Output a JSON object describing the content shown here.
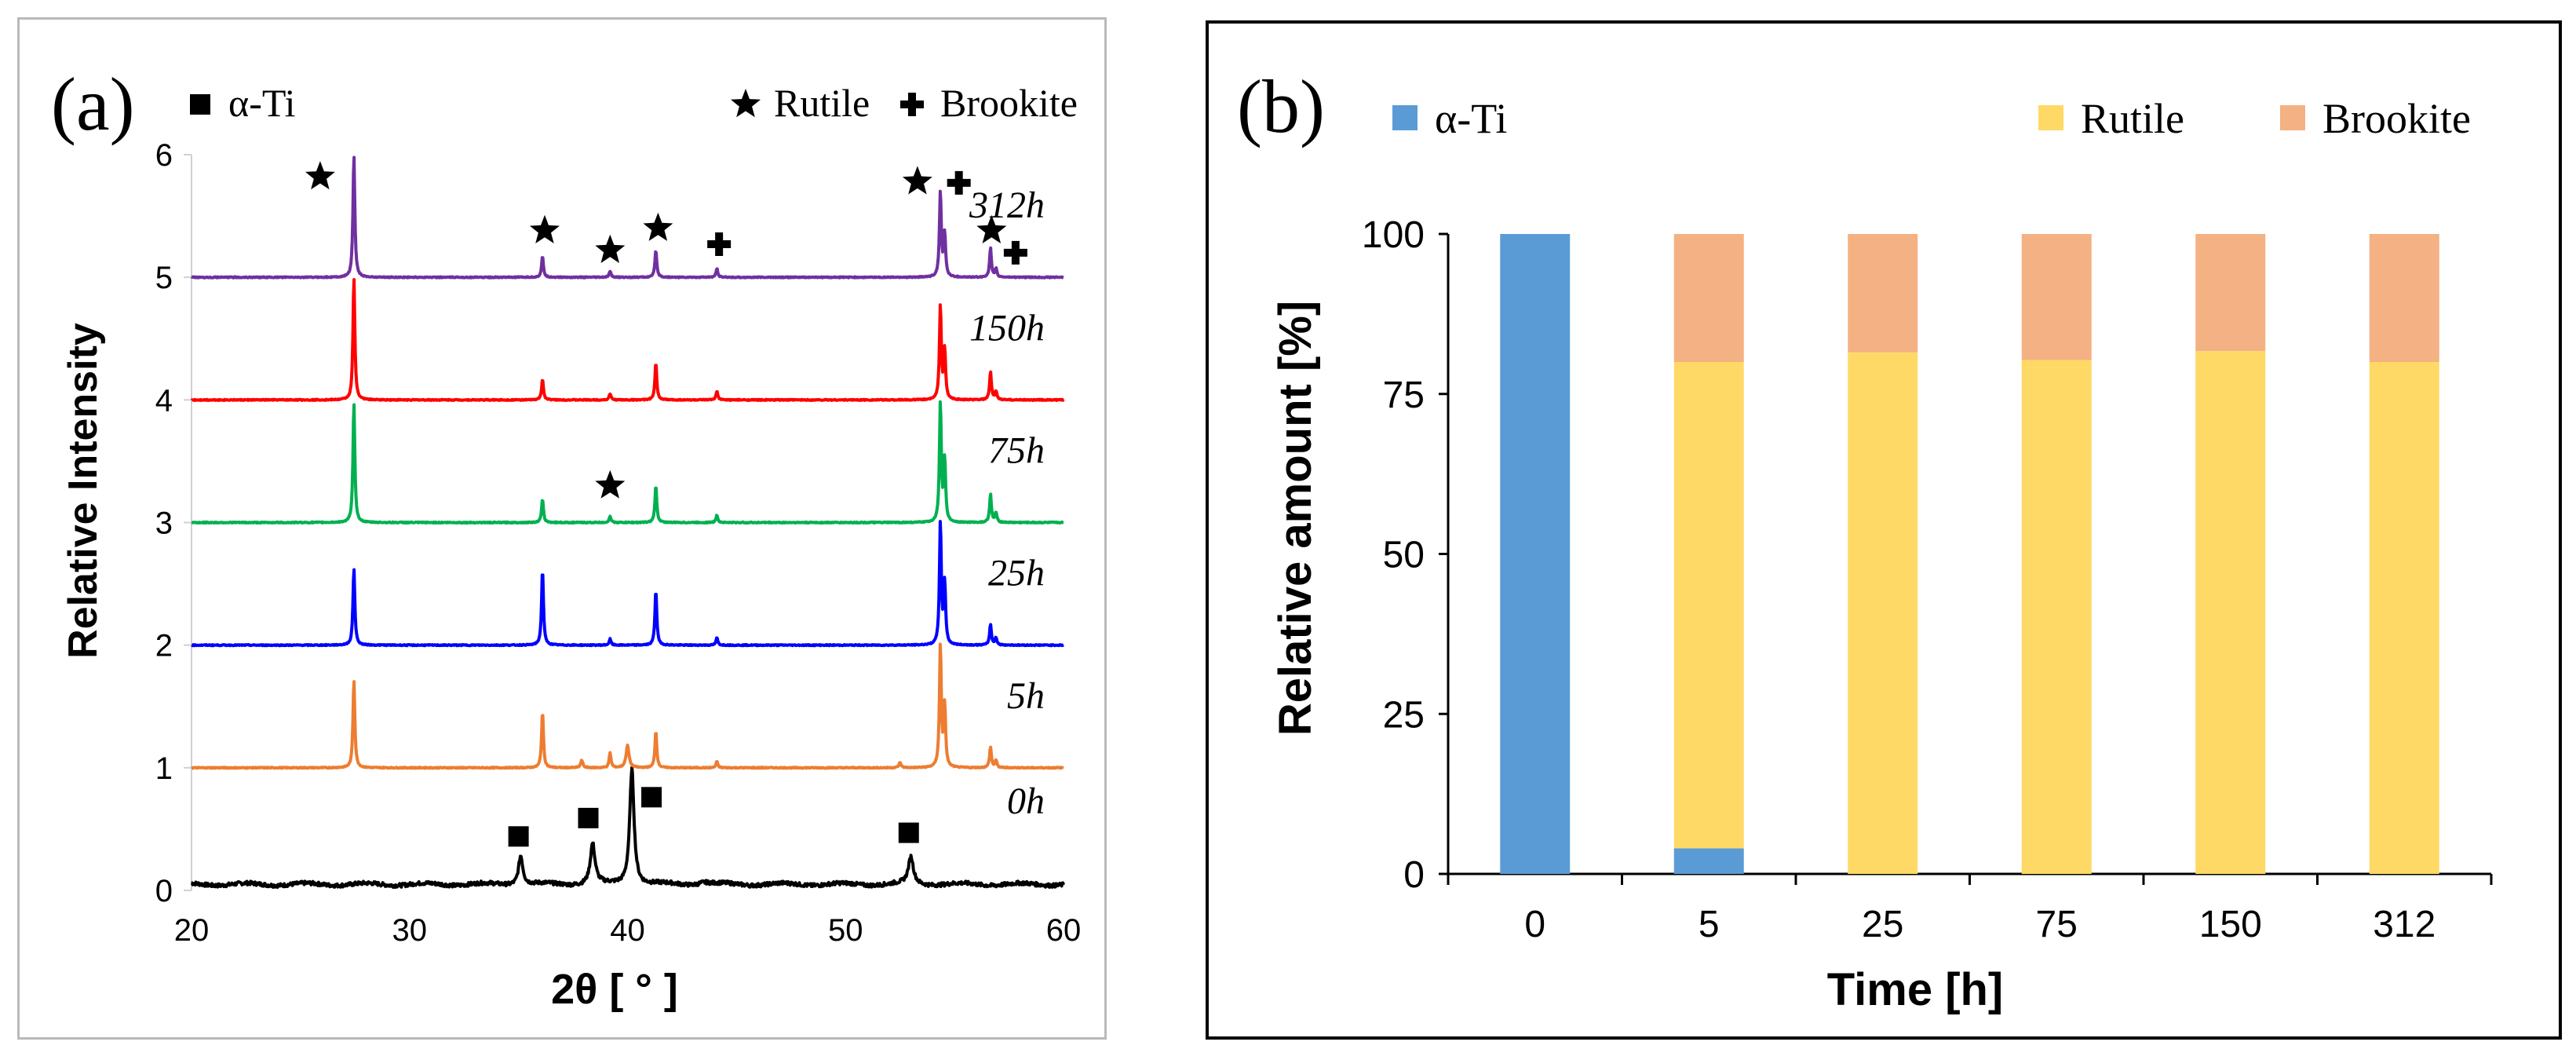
{
  "chart_data": [
    {
      "type": "line",
      "panel_label": "(a)",
      "xlabel": "2θ [ ° ]",
      "ylabel": "Relative Intensity",
      "xlim": [
        20,
        60
      ],
      "ylim": [
        0,
        6
      ],
      "xticks": [
        20,
        30,
        40,
        50,
        60
      ],
      "yticks": [
        0,
        1,
        2,
        3,
        4,
        5,
        6
      ],
      "legend": [
        {
          "marker": "square",
          "label": "α-Ti"
        },
        {
          "marker": "star",
          "label": "Rutile"
        },
        {
          "marker": "cross",
          "label": "Brookite"
        }
      ],
      "series": [
        {
          "name": "0h",
          "offset": 0,
          "color": "#000000",
          "noise": 0.015,
          "peaks": [
            [
              35.1,
              0.24,
              0.12
            ],
            [
              38.4,
              0.33,
              0.13
            ],
            [
              40.2,
              0.95,
              0.12
            ],
            [
              53.0,
              0.22,
              0.14
            ],
            [
              43.5,
              0.02,
              0.3
            ]
          ]
        },
        {
          "name": "5h",
          "offset": 1,
          "color": "#ed7d31",
          "noise": 0.004,
          "peaks": [
            [
              27.45,
              0.72,
              0.05
            ],
            [
              36.1,
              0.46,
              0.05
            ],
            [
              37.9,
              0.06,
              0.06
            ],
            [
              39.2,
              0.12,
              0.05
            ],
            [
              40.0,
              0.18,
              0.08
            ],
            [
              41.3,
              0.3,
              0.05
            ],
            [
              44.1,
              0.05,
              0.05
            ],
            [
              52.5,
              0.04,
              0.06
            ],
            [
              54.35,
              1.0,
              0.05
            ],
            [
              54.55,
              0.5,
              0.05
            ],
            [
              56.65,
              0.17,
              0.05
            ],
            [
              56.9,
              0.06,
              0.05
            ]
          ]
        },
        {
          "name": "25h",
          "offset": 2,
          "color": "#0000ff",
          "noise": 0.004,
          "peaks": [
            [
              27.45,
              0.63,
              0.05
            ],
            [
              36.1,
              0.62,
              0.05
            ],
            [
              39.2,
              0.05,
              0.05
            ],
            [
              41.3,
              0.45,
              0.05
            ],
            [
              44.1,
              0.06,
              0.05
            ],
            [
              54.35,
              1.0,
              0.05
            ],
            [
              54.55,
              0.5,
              0.05
            ],
            [
              56.65,
              0.17,
              0.05
            ],
            [
              56.9,
              0.06,
              0.05
            ]
          ]
        },
        {
          "name": "75h",
          "offset": 3,
          "color": "#00b050",
          "noise": 0.004,
          "peaks": [
            [
              27.45,
              0.98,
              0.05
            ],
            [
              36.1,
              0.19,
              0.05
            ],
            [
              39.2,
              0.05,
              0.05
            ],
            [
              41.3,
              0.3,
              0.05
            ],
            [
              44.1,
              0.06,
              0.05
            ],
            [
              54.35,
              0.98,
              0.05
            ],
            [
              54.55,
              0.5,
              0.05
            ],
            [
              56.65,
              0.23,
              0.05
            ],
            [
              56.9,
              0.08,
              0.05
            ]
          ]
        },
        {
          "name": "150h",
          "offset": 4,
          "color": "#ff0000",
          "noise": 0.004,
          "peaks": [
            [
              27.45,
              1.0,
              0.05
            ],
            [
              36.1,
              0.17,
              0.05
            ],
            [
              39.2,
              0.05,
              0.05
            ],
            [
              41.3,
              0.3,
              0.05
            ],
            [
              44.1,
              0.07,
              0.05
            ],
            [
              54.35,
              0.77,
              0.05
            ],
            [
              54.55,
              0.4,
              0.05
            ],
            [
              56.65,
              0.23,
              0.05
            ],
            [
              56.9,
              0.07,
              0.05
            ]
          ]
        },
        {
          "name": "312h",
          "offset": 5,
          "color": "#7030a0",
          "noise": 0.004,
          "peaks": [
            [
              27.45,
              1.0,
              0.05
            ],
            [
              36.1,
              0.17,
              0.05
            ],
            [
              39.2,
              0.05,
              0.05
            ],
            [
              41.3,
              0.22,
              0.05
            ],
            [
              44.1,
              0.07,
              0.05
            ],
            [
              54.35,
              0.7,
              0.05
            ],
            [
              54.55,
              0.35,
              0.05
            ],
            [
              56.65,
              0.24,
              0.05
            ],
            [
              56.9,
              0.07,
              0.05
            ]
          ]
        }
      ],
      "phase_markers": [
        {
          "phase": "α-Ti",
          "marker": "square",
          "x": 35.0,
          "y": 0.44
        },
        {
          "phase": "α-Ti",
          "marker": "square",
          "x": 38.2,
          "y": 0.59
        },
        {
          "phase": "α-Ti",
          "marker": "square",
          "x": 41.1,
          "y": 0.76
        },
        {
          "phase": "α-Ti",
          "marker": "square",
          "x": 52.9,
          "y": 0.47
        },
        {
          "phase": "Rutile",
          "marker": "star",
          "x": 25.9,
          "y": 5.82
        },
        {
          "phase": "Rutile",
          "marker": "star",
          "x": 36.2,
          "y": 5.38
        },
        {
          "phase": "Rutile",
          "marker": "star",
          "x": 39.2,
          "y": 5.22
        },
        {
          "phase": "Rutile",
          "marker": "star",
          "x": 41.4,
          "y": 5.4
        },
        {
          "phase": "Rutile",
          "marker": "star",
          "x": 53.3,
          "y": 5.78
        },
        {
          "phase": "Rutile",
          "marker": "star",
          "x": 56.7,
          "y": 5.38
        },
        {
          "phase": "Rutile",
          "marker": "star",
          "x": 39.2,
          "y": 3.3
        },
        {
          "phase": "Brookite",
          "marker": "cross",
          "x": 44.2,
          "y": 5.27
        },
        {
          "phase": "Brookite",
          "marker": "cross",
          "x": 55.2,
          "y": 5.77
        },
        {
          "phase": "Brookite",
          "marker": "cross",
          "x": 57.8,
          "y": 5.2
        }
      ]
    },
    {
      "type": "bar",
      "stacked": true,
      "panel_label": "(b)",
      "xlabel": "Time [h]",
      "ylabel": "Relative amount [%]",
      "ylim": [
        0,
        100
      ],
      "yticks": [
        0,
        25,
        50,
        75,
        100
      ],
      "categories": [
        "0",
        "5",
        "25",
        "75",
        "150",
        "312"
      ],
      "series": [
        {
          "name": "α-Ti",
          "color": "#5b9bd5",
          "values": [
            100,
            4,
            0,
            0,
            0,
            0
          ]
        },
        {
          "name": "Rutile",
          "color": "#ffd966",
          "values": [
            0,
            76,
            81.5,
            80.3,
            81.7,
            80
          ]
        },
        {
          "name": "Brookite",
          "color": "#f4b183",
          "values": [
            0,
            20,
            18.5,
            19.7,
            18.3,
            20
          ]
        }
      ]
    }
  ]
}
